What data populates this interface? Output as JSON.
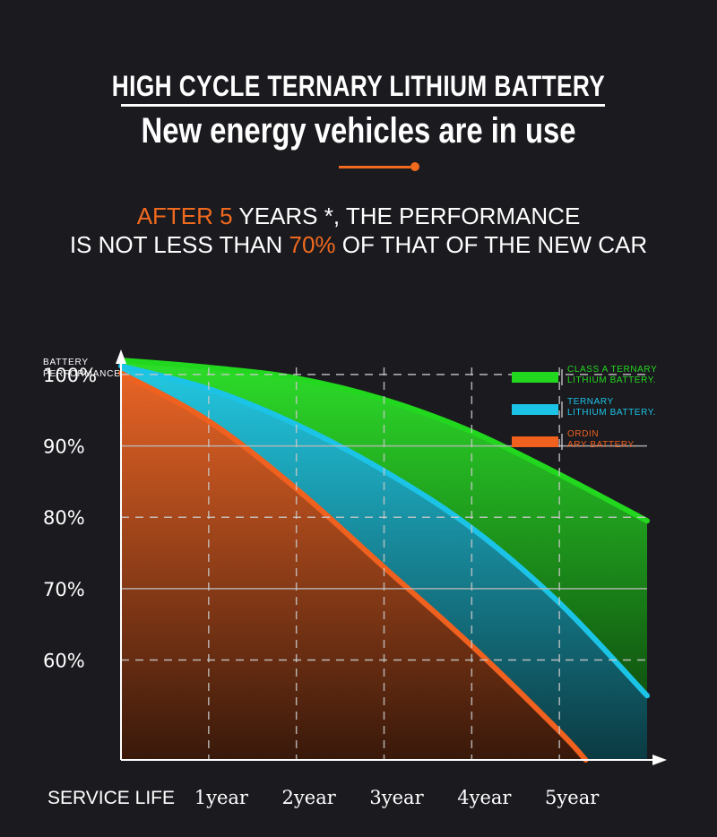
{
  "header": {
    "title": "HIGH CYCLE TERNARY LITHIUM BATTERY",
    "subtitle": "New energy vehicles are in use"
  },
  "claim": {
    "line1_prefix": "AFTER ",
    "line1_years_value": "5",
    "line1_suffix": " YEARS *, THE PERFORMANCE",
    "line2_prefix": "IS NOT LESS THAN ",
    "line2_percent": "70%",
    "line2_suffix": " OF THAT OF THE NEW CAR"
  },
  "colors": {
    "background": "#1b1a1f",
    "accent": "#f06a1e",
    "green": "#22d81e",
    "cyan": "#1bc4e6",
    "orange": "#f0601e"
  },
  "chart_data": {
    "type": "area",
    "title": "",
    "ylabel": "BATTERY PERFORMANCE",
    "xlabel": "SERVICE LIFE",
    "ylim": [
      46,
      102
    ],
    "xlim": [
      0,
      6
    ],
    "y_ticks": [
      {
        "value": 100,
        "label": "100%"
      },
      {
        "value": 90,
        "label": "90%"
      },
      {
        "value": 80,
        "label": "80%"
      },
      {
        "value": 70,
        "label": "70%"
      },
      {
        "value": 60,
        "label": "60%"
      }
    ],
    "x_ticks": [
      {
        "value": 1,
        "label": "1year"
      },
      {
        "value": 2,
        "label": "2year"
      },
      {
        "value": 3,
        "label": "3year"
      },
      {
        "value": 4,
        "label": "4year"
      },
      {
        "value": 5,
        "label": "5year"
      }
    ],
    "series": [
      {
        "name": "CLASS A TERNARY LITHIUM BATTERY.",
        "color_key": "green",
        "x": [
          0,
          1,
          2,
          3,
          4,
          5,
          6
        ],
        "y": [
          102,
          101,
          99.5,
          96.5,
          92,
          86,
          79.5
        ]
      },
      {
        "name": "TERNARY LITHIUM BATTERY.",
        "color_key": "cyan",
        "x": [
          0,
          1,
          2,
          3,
          4,
          5,
          6
        ],
        "y": [
          101.2,
          98,
          93,
          86.5,
          78.5,
          68,
          55
        ]
      },
      {
        "name": "ORDIN ARY BATTERY.",
        "color_key": "orange",
        "x": [
          0,
          1,
          2,
          3,
          4,
          5,
          5.3
        ],
        "y": [
          100.2,
          93.5,
          84,
          73,
          62,
          50,
          46
        ]
      }
    ],
    "legend": {
      "position": "top-right",
      "entries": [
        {
          "line1": "CLASS A TERNARY",
          "line2": "LITHIUM BATTERY."
        },
        {
          "line1": "TERNARY",
          "line2": "LITHIUM BATTERY."
        },
        {
          "line1": "ORDIN",
          "line2": "ARY BATTERY."
        }
      ]
    },
    "reference_lines": [
      100,
      90,
      80,
      70,
      60
    ]
  }
}
